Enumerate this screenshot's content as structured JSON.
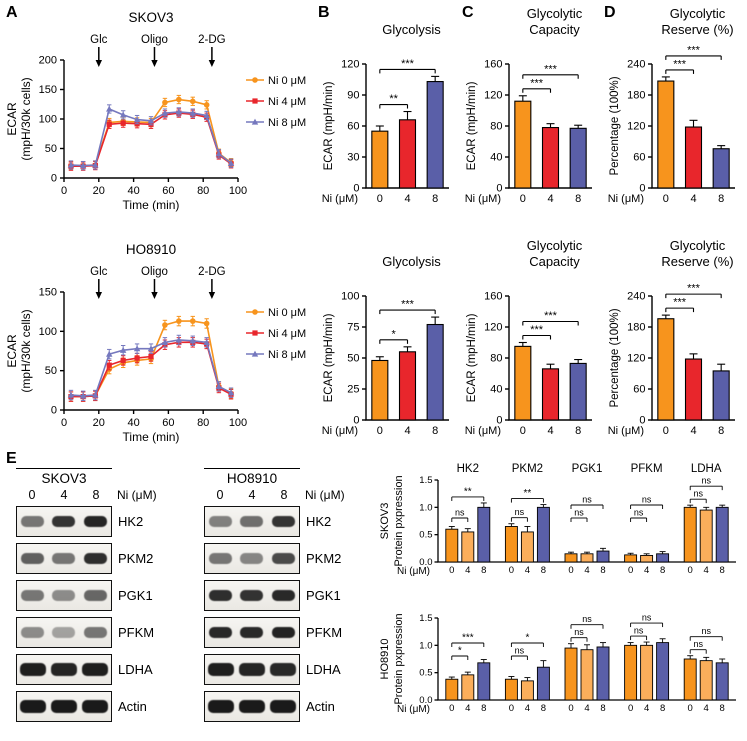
{
  "figure": {
    "panel_labels": {
      "A": "A",
      "B": "B",
      "C": "C",
      "D": "D",
      "E": "E"
    }
  },
  "colors": {
    "ni0": "#F7941D",
    "ni4": "#E8262C",
    "ni8": "#7578BE",
    "ni8bar": "#5A5FA8",
    "e0": "#F7941D",
    "e4": "#FBAE5B",
    "e8": "#5A5FA8"
  },
  "chart_data": [
    {
      "id": "A-SKOV3",
      "type": "line",
      "title": "SKOV3",
      "xlabel": "Time (min)",
      "ylabel": [
        "ECAR",
        "(mpH/30k cells)"
      ],
      "xlim": [
        0,
        100
      ],
      "xticks": [
        0,
        20,
        40,
        60,
        80,
        100
      ],
      "ylim": [
        0,
        200
      ],
      "yticks": [
        0,
        50,
        100,
        150,
        200
      ],
      "annotations": [
        {
          "label": "Glc",
          "x": 20
        },
        {
          "label": "Oligo",
          "x": 52
        },
        {
          "label": "2-DG",
          "x": 85
        }
      ],
      "x": [
        4,
        11,
        18,
        26,
        34,
        42,
        50,
        58,
        66,
        74,
        82,
        89,
        96
      ],
      "series": [
        {
          "name": "Ni 0 μM",
          "color": "ni0",
          "marker": "circle",
          "error": 7,
          "values": [
            21,
            21,
            22,
            94,
            96,
            95,
            94,
            128,
            133,
            130,
            124,
            42,
            26
          ]
        },
        {
          "name": "Ni 4 μM",
          "color": "ni4",
          "marker": "square",
          "error": 7,
          "values": [
            20,
            20,
            21,
            91,
            93,
            92,
            91,
            107,
            110,
            108,
            103,
            39,
            24
          ]
        },
        {
          "name": "Ni 8 μM",
          "color": "ni8",
          "marker": "triangle",
          "error": 7,
          "values": [
            22,
            21,
            22,
            117,
            107,
            99,
            97,
            110,
            112,
            110,
            106,
            41,
            25
          ]
        }
      ]
    },
    {
      "id": "A-HO8910",
      "type": "line",
      "title": "HO8910",
      "xlabel": "Time (min)",
      "ylabel": [
        "ECAR",
        "(mpH/30k cells)"
      ],
      "xlim": [
        0,
        100
      ],
      "xticks": [
        0,
        20,
        40,
        60,
        80,
        100
      ],
      "ylim": [
        0,
        150
      ],
      "yticks": [
        0,
        50,
        100,
        150
      ],
      "annotations": [
        {
          "label": "Glc",
          "x": 20
        },
        {
          "label": "Oligo",
          "x": 52
        },
        {
          "label": "2-DG",
          "x": 85
        }
      ],
      "x": [
        4,
        11,
        18,
        26,
        34,
        42,
        50,
        58,
        66,
        74,
        82,
        89,
        96
      ],
      "series": [
        {
          "name": "Ni 0 μM",
          "color": "ni0",
          "marker": "circle",
          "error": 6,
          "values": [
            17,
            17,
            18,
            52,
            60,
            63,
            65,
            108,
            113,
            113,
            110,
            30,
            21
          ]
        },
        {
          "name": "Ni 4 μM",
          "color": "ni4",
          "marker": "square",
          "error": 6,
          "values": [
            17,
            17,
            18,
            57,
            63,
            66,
            68,
            83,
            86,
            86,
            84,
            28,
            20
          ]
        },
        {
          "name": "Ni 8 μM",
          "color": "ni8",
          "marker": "triangle",
          "error": 6,
          "values": [
            19,
            18,
            19,
            71,
            76,
            78,
            78,
            86,
            89,
            88,
            86,
            30,
            22
          ]
        }
      ]
    },
    {
      "id": "B-SKOV3",
      "type": "bar",
      "title": [
        "Glycolysis"
      ],
      "ylabel": "ECAR (mpH/min)",
      "xlabel": "Ni (μM)",
      "categories": [
        "0",
        "4",
        "8"
      ],
      "ylim": [
        0,
        120
      ],
      "yticks": [
        0,
        30,
        60,
        90,
        120
      ],
      "values": [
        55,
        66,
        103
      ],
      "errors": [
        5,
        8,
        5
      ],
      "colors": [
        "ni0",
        "ni4",
        "ni8bar"
      ],
      "sig": [
        {
          "i": 0,
          "j": 1,
          "label": "**"
        },
        {
          "i": 0,
          "j": 2,
          "label": "***"
        }
      ]
    },
    {
      "id": "C-SKOV3",
      "type": "bar",
      "title": [
        "Glycolytic",
        "Capacity"
      ],
      "ylabel": "ECAR (mpH/min)",
      "xlabel": "Ni (μM)",
      "categories": [
        "0",
        "4",
        "8"
      ],
      "ylim": [
        0,
        160
      ],
      "yticks": [
        0,
        40,
        80,
        120,
        160
      ],
      "values": [
        112,
        78,
        77
      ],
      "errors": [
        7,
        5,
        4
      ],
      "colors": [
        "ni0",
        "ni4",
        "ni8bar"
      ],
      "sig": [
        {
          "i": 0,
          "j": 1,
          "label": "***"
        },
        {
          "i": 0,
          "j": 2,
          "label": "***"
        }
      ]
    },
    {
      "id": "D-SKOV3",
      "type": "bar",
      "title": [
        "Glycolytic",
        "Reserve (%)"
      ],
      "ylabel": "Percentage (100%)",
      "xlabel": "Ni (μM)",
      "categories": [
        "0",
        "4",
        "8"
      ],
      "ylim": [
        0,
        240
      ],
      "yticks": [
        0,
        60,
        120,
        180,
        240
      ],
      "values": [
        207,
        118,
        76
      ],
      "errors": [
        8,
        13,
        6
      ],
      "colors": [
        "ni0",
        "ni4",
        "ni8bar"
      ],
      "sig": [
        {
          "i": 0,
          "j": 1,
          "label": "***"
        },
        {
          "i": 0,
          "j": 2,
          "label": "***"
        }
      ]
    },
    {
      "id": "B-HO8910",
      "type": "bar",
      "title": [
        "Glycolysis"
      ],
      "ylabel": "ECAR (mpH/min)",
      "xlabel": "Ni (μM)",
      "categories": [
        "0",
        "4",
        "8"
      ],
      "ylim": [
        0,
        100
      ],
      "yticks": [
        0,
        25,
        50,
        75,
        100
      ],
      "values": [
        48,
        55,
        77
      ],
      "errors": [
        3,
        4,
        6
      ],
      "colors": [
        "ni0",
        "ni4",
        "ni8bar"
      ],
      "sig": [
        {
          "i": 0,
          "j": 1,
          "label": "*"
        },
        {
          "i": 0,
          "j": 2,
          "label": "***"
        }
      ]
    },
    {
      "id": "C-HO8910",
      "type": "bar",
      "title": [
        "Glycolytic",
        "Capacity"
      ],
      "ylabel": "ECAR (mpH/min)",
      "xlabel": "Ni (μM)",
      "categories": [
        "0",
        "4",
        "8"
      ],
      "ylim": [
        0,
        160
      ],
      "yticks": [
        0,
        40,
        80,
        120,
        160
      ],
      "values": [
        95,
        66,
        73
      ],
      "errors": [
        5,
        6,
        5
      ],
      "colors": [
        "ni0",
        "ni4",
        "ni8bar"
      ],
      "sig": [
        {
          "i": 0,
          "j": 1,
          "label": "***"
        },
        {
          "i": 0,
          "j": 2,
          "label": "***"
        }
      ]
    },
    {
      "id": "D-HO8910",
      "type": "bar",
      "title": [
        "Glycolytic",
        "Reserve (%)"
      ],
      "ylabel": "Percentage (100%)",
      "xlabel": "Ni (μM)",
      "categories": [
        "0",
        "4",
        "8"
      ],
      "ylim": [
        0,
        240
      ],
      "yticks": [
        0,
        60,
        120,
        180,
        240
      ],
      "values": [
        196,
        118,
        95
      ],
      "errors": [
        7,
        10,
        13
      ],
      "colors": [
        "ni0",
        "ni4",
        "ni8bar"
      ],
      "sig": [
        {
          "i": 0,
          "j": 1,
          "label": "***"
        },
        {
          "i": 0,
          "j": 2,
          "label": "***"
        }
      ]
    },
    {
      "id": "E-SKOV3",
      "type": "grouped_bar",
      "ylabel": [
        "SKOV3",
        "Protein pxpression"
      ],
      "xlabel": "Ni (μM)",
      "lane_labels": [
        "0",
        "4",
        "8"
      ],
      "ylim": [
        0,
        1.5
      ],
      "yticks": [
        "0.0",
        "0.5",
        "1.0",
        "1.5"
      ],
      "colors": [
        "e0",
        "e4",
        "e8"
      ],
      "show_group_names": true,
      "groups": [
        {
          "name": "HK2",
          "values": [
            0.6,
            0.55,
            1.0
          ],
          "errors": [
            0.05,
            0.06,
            0.08
          ],
          "sig": [
            {
              "i": 0,
              "j": 1,
              "label": "ns"
            },
            {
              "i": 0,
              "j": 2,
              "label": "**"
            }
          ]
        },
        {
          "name": "PKM2",
          "values": [
            0.65,
            0.55,
            1.0
          ],
          "errors": [
            0.05,
            0.1,
            0.05
          ],
          "sig": [
            {
              "i": 0,
              "j": 1,
              "label": "ns"
            },
            {
              "i": 0,
              "j": 2,
              "label": "**"
            }
          ]
        },
        {
          "name": "PGK1",
          "values": [
            0.15,
            0.15,
            0.2
          ],
          "errors": [
            0.03,
            0.03,
            0.05
          ],
          "sig": [
            {
              "i": 0,
              "j": 1,
              "label": "ns"
            },
            {
              "i": 0,
              "j": 2,
              "label": "ns"
            }
          ]
        },
        {
          "name": "PFKM",
          "values": [
            0.13,
            0.12,
            0.15
          ],
          "errors": [
            0.03,
            0.03,
            0.04
          ],
          "sig": [
            {
              "i": 0,
              "j": 1,
              "label": "ns"
            },
            {
              "i": 0,
              "j": 2,
              "label": "ns"
            }
          ]
        },
        {
          "name": "LDHA",
          "values": [
            1.0,
            0.95,
            1.0
          ],
          "errors": [
            0.04,
            0.05,
            0.04
          ],
          "sig": [
            {
              "i": 0,
              "j": 1,
              "label": "ns"
            },
            {
              "i": 0,
              "j": 2,
              "label": "ns"
            }
          ]
        }
      ]
    },
    {
      "id": "E-HO8910",
      "type": "grouped_bar",
      "ylabel": [
        "HO8910",
        "Protein pxpression"
      ],
      "xlabel": "Ni (μM)",
      "lane_labels": [
        "0",
        "4",
        "8"
      ],
      "ylim": [
        0,
        1.5
      ],
      "yticks": [
        "0.0",
        "0.5",
        "1.0",
        "1.5"
      ],
      "colors": [
        "e0",
        "e4",
        "e8"
      ],
      "show_group_names": false,
      "groups": [
        {
          "name": "HK2",
          "values": [
            0.38,
            0.46,
            0.68
          ],
          "errors": [
            0.04,
            0.05,
            0.06
          ],
          "sig": [
            {
              "i": 0,
              "j": 1,
              "label": "*"
            },
            {
              "i": 0,
              "j": 2,
              "label": "***"
            }
          ]
        },
        {
          "name": "PKM2",
          "values": [
            0.38,
            0.35,
            0.6
          ],
          "errors": [
            0.05,
            0.06,
            0.12
          ],
          "sig": [
            {
              "i": 0,
              "j": 1,
              "label": "ns"
            },
            {
              "i": 0,
              "j": 2,
              "label": "*"
            }
          ]
        },
        {
          "name": "PGK1",
          "values": [
            0.95,
            0.92,
            0.97
          ],
          "errors": [
            0.08,
            0.09,
            0.08
          ],
          "sig": [
            {
              "i": 0,
              "j": 1,
              "label": "ns"
            },
            {
              "i": 0,
              "j": 2,
              "label": "ns"
            }
          ]
        },
        {
          "name": "PFKM",
          "values": [
            1.0,
            1.0,
            1.05
          ],
          "errors": [
            0.05,
            0.06,
            0.07
          ],
          "sig": [
            {
              "i": 0,
              "j": 1,
              "label": "ns"
            },
            {
              "i": 0,
              "j": 2,
              "label": "ns"
            }
          ]
        },
        {
          "name": "LDHA",
          "values": [
            0.75,
            0.72,
            0.68
          ],
          "errors": [
            0.06,
            0.06,
            0.07
          ],
          "sig": [
            {
              "i": 0,
              "j": 1,
              "label": "ns"
            },
            {
              "i": 0,
              "j": 2,
              "label": "ns"
            }
          ]
        }
      ]
    }
  ],
  "blots": [
    {
      "cell_line": "SKOV3",
      "lane_labels": [
        "0",
        "4",
        "8"
      ],
      "lane_unit": "Ni (μM)",
      "rows": [
        {
          "protein": "HK2",
          "intensities": [
            0.55,
            0.85,
            0.92
          ]
        },
        {
          "protein": "PKM2",
          "intensities": [
            0.65,
            0.55,
            0.88
          ]
        },
        {
          "protein": "PGK1",
          "intensities": [
            0.55,
            0.45,
            0.62
          ]
        },
        {
          "protein": "PFKM",
          "intensities": [
            0.45,
            0.35,
            0.55
          ]
        },
        {
          "protein": "LDHA",
          "intensities": [
            0.95,
            0.92,
            0.95
          ]
        },
        {
          "protein": "Actin",
          "intensities": [
            0.97,
            0.97,
            0.97
          ]
        }
      ]
    },
    {
      "cell_line": "HO8910",
      "lane_labels": [
        "0",
        "4",
        "8"
      ],
      "lane_unit": "Ni (μM)",
      "rows": [
        {
          "protein": "HK2",
          "intensities": [
            0.5,
            0.58,
            0.85
          ]
        },
        {
          "protein": "PKM2",
          "intensities": [
            0.55,
            0.48,
            0.75
          ]
        },
        {
          "protein": "PGK1",
          "intensities": [
            0.88,
            0.86,
            0.9
          ]
        },
        {
          "protein": "PFKM",
          "intensities": [
            0.9,
            0.9,
            0.93
          ]
        },
        {
          "protein": "LDHA",
          "intensities": [
            0.95,
            0.92,
            0.9
          ]
        },
        {
          "protein": "Actin",
          "intensities": [
            0.97,
            0.97,
            0.97
          ]
        }
      ]
    }
  ]
}
